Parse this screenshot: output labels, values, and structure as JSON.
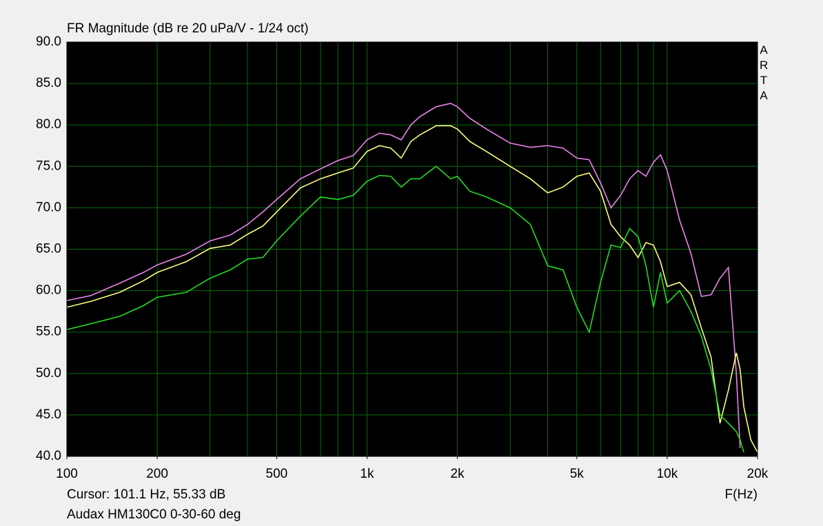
{
  "chart_data": {
    "type": "line",
    "title": "FR Magnitude (dB re 20 uPa/V - 1/24 oct)",
    "side_label": "ARTA",
    "x_label": "F(Hz)",
    "cursor_text": "Cursor: 101.1 Hz, 55.33 dB",
    "caption": "Audax HM130C0 0-30-60 deg",
    "log_x": true,
    "grid": true,
    "x": [
      100,
      120,
      150,
      180,
      200,
      250,
      300,
      350,
      400,
      450,
      500,
      600,
      700,
      800,
      900,
      1000,
      1100,
      1200,
      1300,
      1400,
      1500,
      1700,
      1900,
      2000,
      2200,
      2500,
      3000,
      3500,
      4000,
      4500,
      5000,
      5500,
      6000,
      6500,
      7000,
      7500,
      8000,
      8500,
      9000,
      9500,
      10000,
      11000,
      12000,
      13000,
      14000,
      15000,
      16000,
      17000,
      17500,
      18000,
      19000,
      20000
    ],
    "series": [
      {
        "color": "#ee82ee",
        "values": [
          58.8,
          59.4,
          60.9,
          62.2,
          63.1,
          64.4,
          66.0,
          66.7,
          68.0,
          69.5,
          71.0,
          73.5,
          74.7,
          75.7,
          76.3,
          78.2,
          79.0,
          78.8,
          78.2,
          80.0,
          81.0,
          82.2,
          82.6,
          82.2,
          80.8,
          79.5,
          77.8,
          77.3,
          77.5,
          77.2,
          76.0,
          75.8,
          73.0,
          70.0,
          71.5,
          73.5,
          74.5,
          73.8,
          75.5,
          76.4,
          74.5,
          68.5,
          64.5,
          59.3,
          59.5,
          61.5,
          62.8,
          50.0,
          41.0,
          null,
          null,
          null
        ]
      },
      {
        "color": "#ffff80",
        "values": [
          58.0,
          58.7,
          59.8,
          61.2,
          62.2,
          63.5,
          65.1,
          65.5,
          66.8,
          67.8,
          69.5,
          72.4,
          73.5,
          74.2,
          74.8,
          76.8,
          77.5,
          77.2,
          76.0,
          78.0,
          78.8,
          79.9,
          79.9,
          79.5,
          78.0,
          76.8,
          75.0,
          73.5,
          71.8,
          72.5,
          73.8,
          74.2,
          72.0,
          68.0,
          66.5,
          65.5,
          64.0,
          65.8,
          65.5,
          63.5,
          60.5,
          61.0,
          59.5,
          55.5,
          52.0,
          44.0,
          48.0,
          52.5,
          50.5,
          46.0,
          42.0,
          40.5
        ]
      },
      {
        "color": "#22dd22",
        "values": [
          55.3,
          56.0,
          56.9,
          58.2,
          59.2,
          59.8,
          61.5,
          62.5,
          63.8,
          64.0,
          66.0,
          69.0,
          71.3,
          71.0,
          71.5,
          73.2,
          73.9,
          73.8,
          72.5,
          73.5,
          73.5,
          75.0,
          73.5,
          73.8,
          72.0,
          71.3,
          70.0,
          68.0,
          63.0,
          62.5,
          58.0,
          55.0,
          61.0,
          65.5,
          65.2,
          67.5,
          66.5,
          63.0,
          58.0,
          62.2,
          58.5,
          60.0,
          57.5,
          54.5,
          50.5,
          45.0,
          44.0,
          43.0,
          42.0,
          40.5,
          null,
          null
        ]
      }
    ],
    "xlim": [
      100,
      20000
    ],
    "xticks": [
      100,
      200,
      500,
      {
        "value": 1000,
        "label": "1k"
      },
      {
        "value": 2000,
        "label": "2k"
      },
      {
        "value": 5000,
        "label": "5k"
      },
      {
        "value": 10000,
        "label": "10k"
      },
      {
        "value": 20000,
        "label": "20k"
      }
    ],
    "xgrid": [
      100,
      200,
      300,
      400,
      500,
      600,
      700,
      800,
      900,
      1000,
      2000,
      3000,
      4000,
      5000,
      6000,
      7000,
      8000,
      9000,
      10000,
      20000
    ],
    "ylim": [
      40,
      90
    ],
    "yticks": [
      {
        "value": 40,
        "label": "40.0"
      },
      {
        "value": 45,
        "label": "45.0"
      },
      {
        "value": 50,
        "label": "50.0"
      },
      {
        "value": 55,
        "label": "55.0"
      },
      {
        "value": 60,
        "label": "60.0"
      },
      {
        "value": 65,
        "label": "65.0"
      },
      {
        "value": 70,
        "label": "70.0"
      },
      {
        "value": 75,
        "label": "75.0"
      },
      {
        "value": 80,
        "label": "80.0"
      },
      {
        "value": 85,
        "label": "85.0"
      },
      {
        "value": 90,
        "label": "90.0"
      }
    ]
  }
}
